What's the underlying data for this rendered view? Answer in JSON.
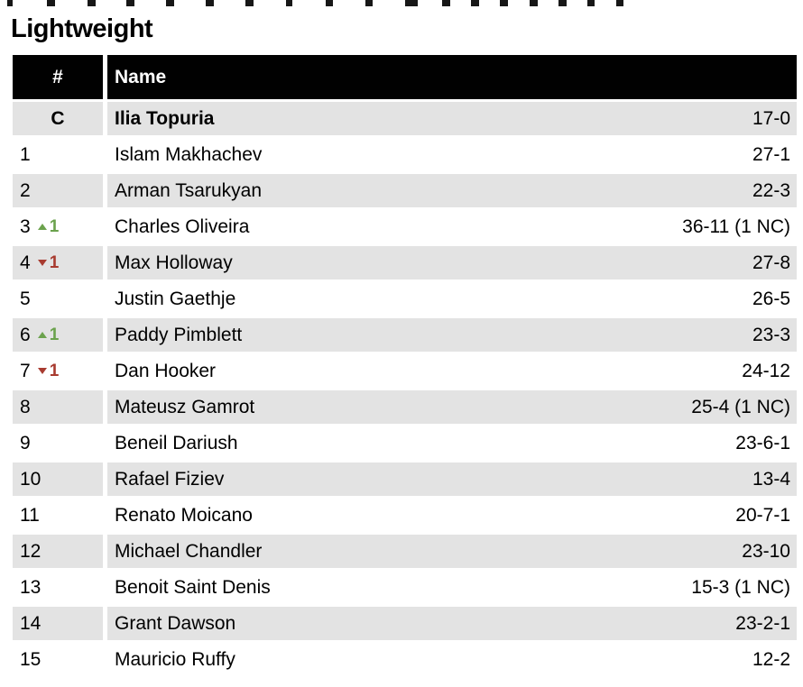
{
  "page": {
    "title": "Lightweight"
  },
  "table": {
    "header": {
      "rank_label": "#",
      "name_label": "Name"
    },
    "colors": {
      "header_bg": "#010101",
      "header_text": "#ffffff",
      "row_alt_bg": "#e3e3e3",
      "up": "#6ba24d",
      "down": "#a83b30"
    },
    "rows": [
      {
        "rank": "C",
        "champion": true,
        "name": "Ilia Topuria",
        "record": "17-0",
        "move": null
      },
      {
        "rank": "1",
        "champion": false,
        "name": "Islam Makhachev",
        "record": "27-1",
        "move": null
      },
      {
        "rank": "2",
        "champion": false,
        "name": "Arman Tsarukyan",
        "record": "22-3",
        "move": null
      },
      {
        "rank": "3",
        "champion": false,
        "name": "Charles Oliveira",
        "record": "36-11 (1 NC)",
        "move": {
          "dir": "up",
          "amount": "1"
        }
      },
      {
        "rank": "4",
        "champion": false,
        "name": "Max Holloway",
        "record": "27-8",
        "move": {
          "dir": "down",
          "amount": "1"
        }
      },
      {
        "rank": "5",
        "champion": false,
        "name": "Justin Gaethje",
        "record": "26-5",
        "move": null
      },
      {
        "rank": "6",
        "champion": false,
        "name": "Paddy Pimblett",
        "record": "23-3",
        "move": {
          "dir": "up",
          "amount": "1"
        }
      },
      {
        "rank": "7",
        "champion": false,
        "name": "Dan Hooker",
        "record": "24-12",
        "move": {
          "dir": "down",
          "amount": "1"
        }
      },
      {
        "rank": "8",
        "champion": false,
        "name": "Mateusz Gamrot",
        "record": "25-4 (1 NC)",
        "move": null
      },
      {
        "rank": "9",
        "champion": false,
        "name": "Beneil Dariush",
        "record": "23-6-1",
        "move": null
      },
      {
        "rank": "10",
        "champion": false,
        "name": "Rafael Fiziev",
        "record": "13-4",
        "move": null
      },
      {
        "rank": "11",
        "champion": false,
        "name": "Renato Moicano",
        "record": "20-7-1",
        "move": null
      },
      {
        "rank": "12",
        "champion": false,
        "name": "Michael Chandler",
        "record": "23-10",
        "move": null
      },
      {
        "rank": "13",
        "champion": false,
        "name": "Benoit Saint Denis",
        "record": "15-3 (1 NC)",
        "move": null
      },
      {
        "rank": "14",
        "champion": false,
        "name": "Grant Dawson",
        "record": "23-2-1",
        "move": null
      },
      {
        "rank": "15",
        "champion": false,
        "name": "Mauricio Ruffy",
        "record": "12-2",
        "move": null
      }
    ]
  }
}
